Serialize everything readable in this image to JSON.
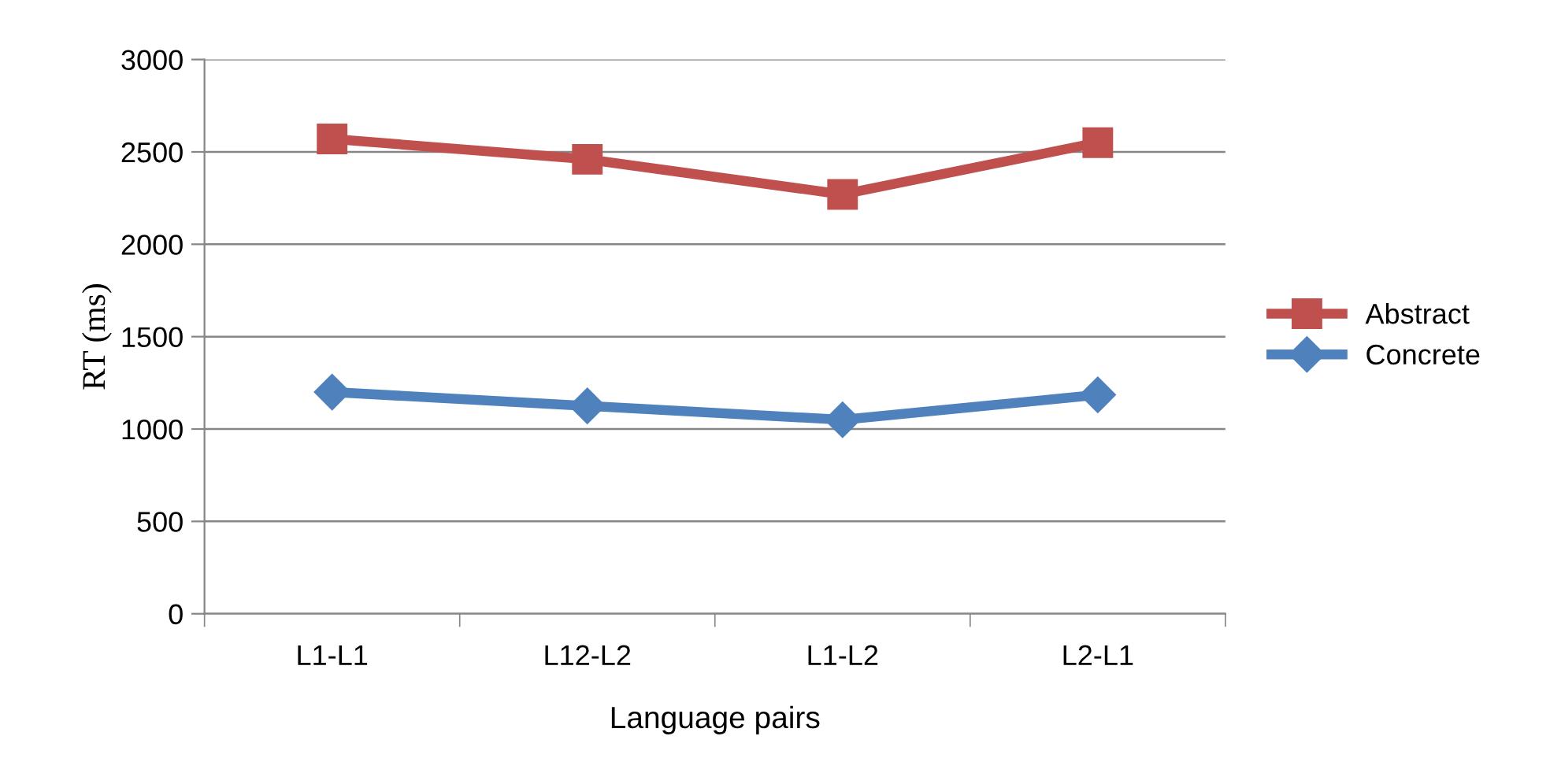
{
  "chart_data": {
    "type": "line",
    "xlabel": "Language pairs",
    "ylabel": "RT (ms)",
    "categories": [
      "L1-L1",
      "L12-L2",
      "L1-L2",
      "L2-L1"
    ],
    "series": [
      {
        "name": "Abstract",
        "color": "#c0504d",
        "marker": "square",
        "values": [
          2570,
          2460,
          2270,
          2550
        ]
      },
      {
        "name": "Concrete",
        "color": "#4f81bd",
        "marker": "diamond",
        "values": [
          1200,
          1125,
          1050,
          1185
        ]
      }
    ],
    "ylim": [
      0,
      3000
    ],
    "yticks": [
      0,
      500,
      1000,
      1500,
      2000,
      2500,
      3000
    ],
    "grid": "y",
    "legend": "right",
    "line_style": "solid"
  }
}
